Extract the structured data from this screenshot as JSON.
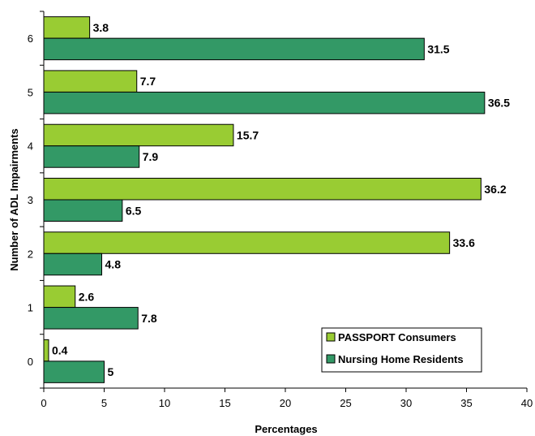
{
  "chart_data": {
    "type": "bar",
    "orientation": "horizontal",
    "categories": [
      "0",
      "1",
      "2",
      "3",
      "4",
      "5",
      "6"
    ],
    "series": [
      {
        "name": "PASSPORT Consumers",
        "color": "#99cc33",
        "values": [
          0.4,
          2.6,
          33.6,
          36.2,
          15.7,
          7.7,
          3.8
        ]
      },
      {
        "name": "Nursing Home Residents",
        "color": "#339966",
        "values": [
          5,
          7.8,
          4.8,
          6.5,
          7.9,
          36.5,
          31.5
        ]
      }
    ],
    "xlabel": "Percentages",
    "ylabel": "Number of ADL Impairments",
    "xlim": [
      0,
      40
    ],
    "xticks": [
      "0",
      "5",
      "10",
      "15",
      "20",
      "25",
      "30",
      "35",
      "40"
    ],
    "data_labels": {
      "PASSPORT Consumers": [
        "0.4",
        "2.6",
        "33.6",
        "36.2",
        "15.7",
        "7.7",
        "3.8"
      ],
      "Nursing Home Residents": [
        "5",
        "7.8",
        "4.8",
        "6.5",
        "7.9",
        "36.5",
        "31.5"
      ]
    },
    "legend": {
      "position": "bottom-right",
      "entries": [
        "PASSPORT Consumers",
        "Nursing Home Residents"
      ]
    },
    "grid": false
  }
}
